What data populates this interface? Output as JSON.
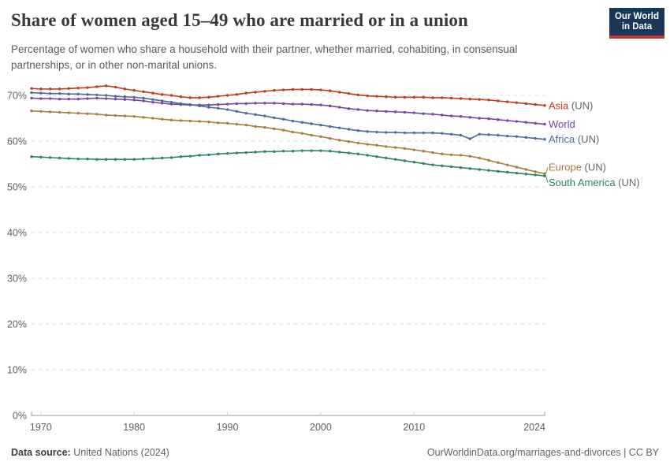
{
  "header": {
    "title": "Share of women aged 15–49 who are married or in a union",
    "subtitle": "Percentage of women who share a household with their partner, whether married, cohabiting, in consensual partnerships, or in other non-marital unions.",
    "logo": {
      "line1": "Our World",
      "line2": "in Data"
    }
  },
  "footer": {
    "source_label": "Data source:",
    "source_value": "United Nations (2024)",
    "credit": "OurWorldinData.org/marriages-and-divorces | CC BY"
  },
  "colors": {
    "logo_navy": "#18375a",
    "logo_red": "#c0392b",
    "grid": "#d8d8d8",
    "axis": "#9a9a9a",
    "tick_text": "#616161",
    "legend_suffix_gray": "#666666"
  },
  "chart_data": {
    "type": "line",
    "title": "Share of women aged 15–49 who are married or in a union",
    "xlabel": "",
    "ylabel": "",
    "x_range": [
      1969,
      2024
    ],
    "ylim": [
      0,
      72.5
    ],
    "y_ticks": [
      0,
      10,
      20,
      30,
      40,
      50,
      60,
      70
    ],
    "y_tick_suffix": "%",
    "x_ticks": [
      1970,
      1980,
      1990,
      2000,
      2010,
      2024
    ],
    "grid": "horizontal-dashed",
    "legend_position": "right-of-line-ends",
    "markers": true,
    "years": [
      1969,
      1970,
      1971,
      1972,
      1973,
      1974,
      1975,
      1976,
      1977,
      1978,
      1979,
      1980,
      1981,
      1982,
      1983,
      1984,
      1985,
      1986,
      1987,
      1988,
      1989,
      1990,
      1991,
      1992,
      1993,
      1994,
      1995,
      1996,
      1997,
      1998,
      1999,
      2000,
      2001,
      2002,
      2003,
      2004,
      2005,
      2006,
      2007,
      2008,
      2009,
      2010,
      2011,
      2012,
      2013,
      2014,
      2015,
      2016,
      2017,
      2018,
      2019,
      2020,
      2021,
      2022,
      2023,
      2024
    ],
    "series": [
      {
        "label": "Asia",
        "suffix": " (UN)",
        "color": "#bf3c1f",
        "values": [
          71.5,
          71.4,
          71.4,
          71.4,
          71.5,
          71.6,
          71.7,
          71.9,
          72.1,
          71.8,
          71.4,
          71.1,
          70.8,
          70.5,
          70.2,
          70.0,
          69.7,
          69.5,
          69.5,
          69.6,
          69.8,
          70.0,
          70.2,
          70.5,
          70.7,
          70.9,
          71.1,
          71.2,
          71.3,
          71.3,
          71.3,
          71.2,
          71.0,
          70.7,
          70.4,
          70.1,
          69.9,
          69.8,
          69.7,
          69.6,
          69.6,
          69.6,
          69.6,
          69.5,
          69.5,
          69.4,
          69.3,
          69.2,
          69.1,
          69.0,
          68.8,
          68.6,
          68.4,
          68.2,
          68.0,
          67.8
        ]
      },
      {
        "label": "World",
        "suffix": "",
        "color": "#7347a5",
        "values": [
          69.4,
          69.3,
          69.3,
          69.2,
          69.2,
          69.2,
          69.3,
          69.4,
          69.3,
          69.2,
          69.1,
          69.0,
          68.8,
          68.5,
          68.3,
          68.1,
          68.0,
          67.9,
          67.9,
          67.9,
          68.0,
          68.1,
          68.2,
          68.2,
          68.3,
          68.3,
          68.3,
          68.2,
          68.1,
          68.1,
          68.0,
          67.9,
          67.7,
          67.4,
          67.1,
          66.9,
          66.7,
          66.6,
          66.5,
          66.4,
          66.3,
          66.2,
          66.0,
          65.9,
          65.7,
          65.5,
          65.4,
          65.2,
          65.0,
          64.9,
          64.7,
          64.5,
          64.3,
          64.1,
          63.9,
          63.7
        ]
      },
      {
        "label": "Africa",
        "suffix": " (UN)",
        "color": "#4c6a9c",
        "values": [
          70.6,
          70.5,
          70.4,
          70.4,
          70.3,
          70.3,
          70.2,
          70.1,
          70.0,
          69.8,
          69.7,
          69.6,
          69.4,
          69.1,
          68.8,
          68.5,
          68.2,
          68.0,
          67.7,
          67.4,
          67.2,
          66.9,
          66.5,
          66.1,
          65.8,
          65.5,
          65.1,
          64.8,
          64.4,
          64.1,
          63.8,
          63.5,
          63.2,
          62.9,
          62.6,
          62.3,
          62.1,
          62.0,
          61.9,
          61.9,
          61.8,
          61.8,
          61.8,
          61.8,
          61.7,
          61.5,
          61.3,
          60.5,
          61.5,
          61.4,
          61.3,
          61.1,
          61.0,
          60.8,
          60.6,
          60.4
        ]
      },
      {
        "label": "Europe",
        "suffix": " (UN)",
        "color": "#a87e3e",
        "values": [
          66.6,
          66.5,
          66.4,
          66.3,
          66.2,
          66.1,
          66.0,
          65.9,
          65.7,
          65.6,
          65.5,
          65.4,
          65.2,
          65.0,
          64.8,
          64.6,
          64.5,
          64.4,
          64.3,
          64.2,
          64.0,
          63.9,
          63.7,
          63.5,
          63.2,
          63.0,
          62.7,
          62.4,
          62.0,
          61.7,
          61.3,
          61.0,
          60.6,
          60.2,
          59.9,
          59.6,
          59.3,
          59.1,
          58.8,
          58.6,
          58.4,
          58.1,
          57.8,
          57.5,
          57.2,
          57.0,
          56.9,
          56.7,
          56.3,
          55.8,
          55.3,
          54.8,
          54.3,
          53.8,
          53.3,
          52.9
        ]
      },
      {
        "label": "South America",
        "suffix": " (UN)",
        "color": "#2a8466",
        "values": [
          56.6,
          56.5,
          56.4,
          56.3,
          56.2,
          56.1,
          56.1,
          56.0,
          56.0,
          56.0,
          56.0,
          56.0,
          56.1,
          56.2,
          56.3,
          56.4,
          56.6,
          56.7,
          56.9,
          57.0,
          57.2,
          57.3,
          57.4,
          57.5,
          57.6,
          57.7,
          57.7,
          57.8,
          57.8,
          57.9,
          57.9,
          57.9,
          57.8,
          57.6,
          57.4,
          57.2,
          56.9,
          56.6,
          56.3,
          56.0,
          55.7,
          55.4,
          55.1,
          54.8,
          54.6,
          54.4,
          54.2,
          54.0,
          53.8,
          53.6,
          53.4,
          53.2,
          53.0,
          52.8,
          52.6,
          52.4
        ]
      }
    ]
  }
}
